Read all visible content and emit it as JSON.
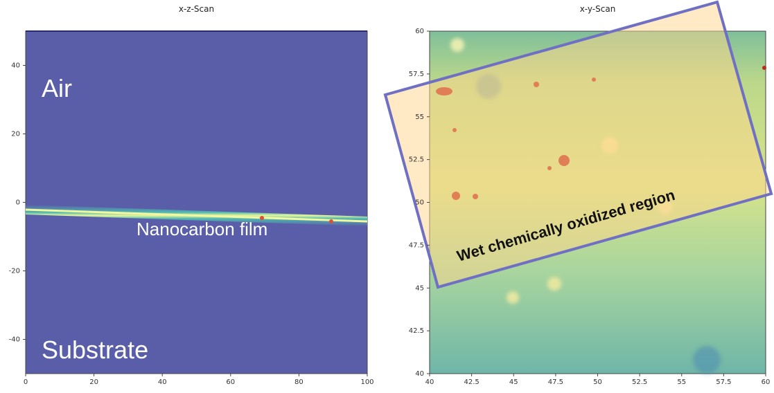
{
  "chart_data": [
    {
      "type": "image",
      "title": "x-z-Scan",
      "xlim": [
        0,
        100
      ],
      "xticks": [
        0,
        20,
        40,
        60,
        80,
        100
      ],
      "ylim": [
        -50,
        50
      ],
      "yticks": [
        -40,
        -20,
        0,
        20,
        40
      ],
      "annotations": [
        "Air",
        "Nanocarbon film",
        "Substrate"
      ]
    },
    {
      "type": "image",
      "title": "x-y-Scan",
      "xlim": [
        40,
        60
      ],
      "xticks": [
        40,
        42.5,
        45,
        47.5,
        50,
        52.5,
        55,
        57.5,
        60
      ],
      "ylim": [
        40,
        60
      ],
      "yticks": [
        40,
        42.5,
        45,
        47.5,
        50,
        52.5,
        55,
        57.5,
        60
      ],
      "annotations": [
        "Wet chemically oxidized region"
      ]
    }
  ]
}
